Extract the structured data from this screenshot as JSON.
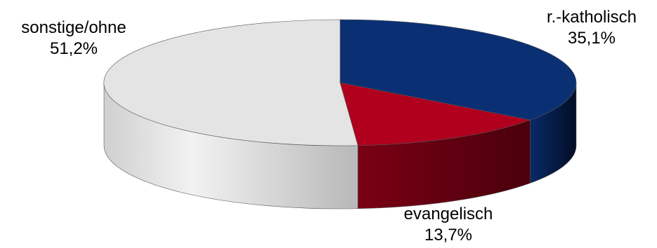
{
  "chart_data": {
    "type": "pie",
    "title": "",
    "legend": "none",
    "slices": [
      {
        "name": "r.-katholisch",
        "value": 35.1,
        "label": "35,1%",
        "color": "#0b2f73",
        "side_color": "#061a42"
      },
      {
        "name": "evangelisch",
        "value": 13.7,
        "label": "13,7%",
        "color": "#b0001e",
        "side_color": "#6e0012"
      },
      {
        "name": "sonstige/ohne",
        "value": 51.2,
        "label": "51,2%",
        "color": "#e4e4e4",
        "side_color": "#c4c4c4"
      }
    ]
  }
}
